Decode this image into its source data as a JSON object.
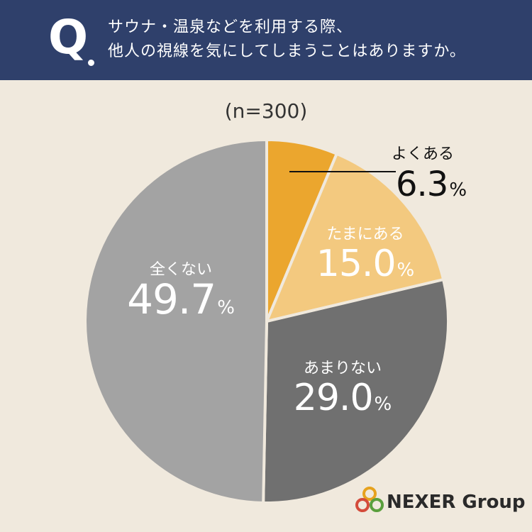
{
  "header": {
    "q_mark": "Q",
    "question_line1": "サウナ・温泉などを利用する際、",
    "question_line2": "他人の視線を気にしてしまうことはありますか。"
  },
  "sample": "(n=300)",
  "chart_data": {
    "type": "pie",
    "categories": [
      "よくある",
      "たまにある",
      "あまりない",
      "全くない"
    ],
    "values": [
      6.3,
      15.0,
      29.0,
      49.7
    ],
    "value_labels": [
      "6.3",
      "15.0",
      "29.0",
      "49.7"
    ],
    "unit": "%",
    "colors": [
      "#eba62e",
      "#f3c97f",
      "#707070",
      "#a3a3a3"
    ],
    "start_angle": "12 o'clock",
    "direction": "clockwise"
  },
  "brand": {
    "name": "NEXER Group"
  }
}
